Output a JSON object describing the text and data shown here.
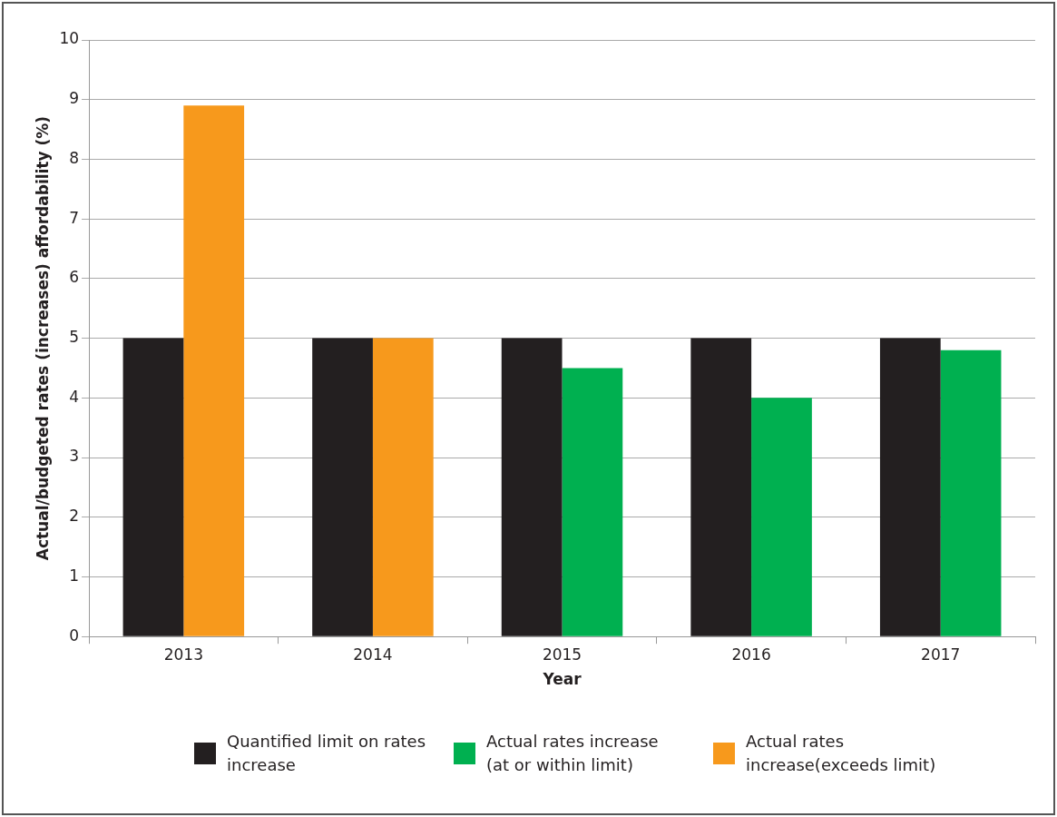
{
  "chart_data": {
    "type": "bar",
    "xlabel": "Year",
    "ylabel": "Actual/budgeted rates (increases) affordability (%)",
    "categories": [
      "2013",
      "2014",
      "2015",
      "2016",
      "2017"
    ],
    "series": [
      {
        "name": "Quantified limit on rates increase",
        "color": "#231f20",
        "values": [
          5,
          5,
          5,
          5,
          5
        ]
      },
      {
        "name": "Actual rates increase (at or within limit)",
        "color": "#00b050",
        "values": [
          null,
          null,
          4.5,
          4.0,
          4.8
        ]
      },
      {
        "name": "Actual rates increase(exceeds limit)",
        "color": "#f7991c",
        "values": [
          8.9,
          5.0,
          null,
          null,
          null
        ]
      }
    ],
    "ylim": [
      0,
      10
    ],
    "yticks": [
      0,
      1,
      2,
      3,
      4,
      5,
      6,
      7,
      8,
      9,
      10
    ],
    "grid": "y",
    "legend": "bottom"
  }
}
